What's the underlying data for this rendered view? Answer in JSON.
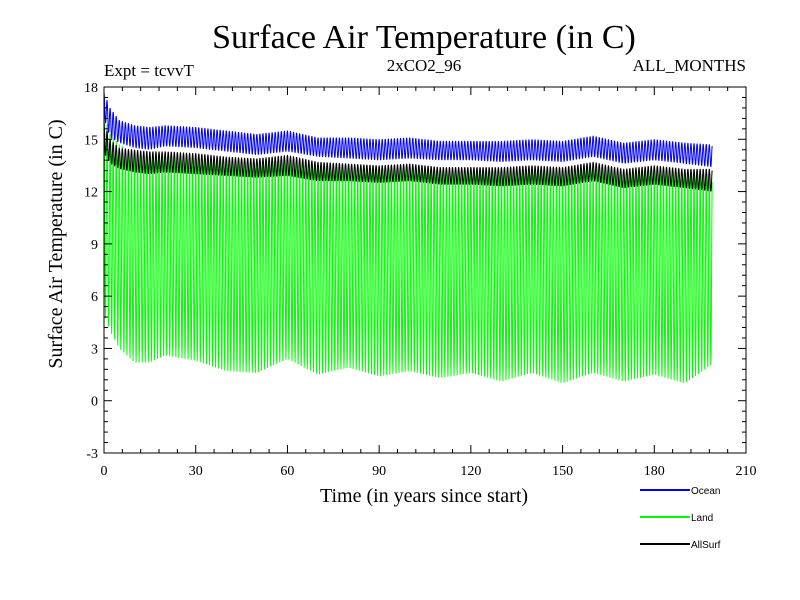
{
  "chart_data": {
    "type": "line",
    "title": "Surface Air Temperature (in C)",
    "subtitle_left": "Expt = tcvvT",
    "subtitle_center": "2xCO2_96",
    "subtitle_right": "ALL_MONTHS",
    "xlabel": "Time (in years since start)",
    "ylabel": "Surface Air Temperature (in C)",
    "xlim": [
      0,
      210
    ],
    "ylim": [
      -3,
      18
    ],
    "xticks": [
      0,
      30,
      60,
      90,
      120,
      150,
      180,
      210
    ],
    "yticks": [
      -3,
      0,
      3,
      6,
      9,
      12,
      15,
      18
    ],
    "grid": false,
    "legend_position": "bottom-right",
    "series": [
      {
        "name": "Land",
        "color": "#00ff00",
        "x": [
          0,
          2,
          5,
          10,
          15,
          20,
          30,
          40,
          50,
          60,
          70,
          80,
          90,
          100,
          110,
          120,
          130,
          140,
          150,
          160,
          170,
          180,
          190,
          199
        ],
        "ymax": [
          16.4,
          15.3,
          14.7,
          14.2,
          14.0,
          14.0,
          13.9,
          13.7,
          13.7,
          13.9,
          13.6,
          13.5,
          13.4,
          13.4,
          13.3,
          13.3,
          13.2,
          13.3,
          13.3,
          13.3,
          13.2,
          13.3,
          13.2,
          13.3
        ],
        "ymin": [
          5.0,
          4.0,
          3.0,
          2.2,
          2.2,
          2.6,
          2.3,
          1.7,
          1.6,
          2.4,
          1.5,
          1.9,
          1.4,
          1.7,
          1.3,
          1.6,
          1.1,
          1.6,
          1.0,
          1.6,
          1.1,
          1.5,
          1.0,
          2.1
        ]
      },
      {
        "name": "Ocean",
        "color": "#0000ff",
        "x": [
          0,
          2,
          5,
          10,
          15,
          20,
          30,
          40,
          50,
          60,
          70,
          80,
          90,
          100,
          110,
          120,
          130,
          140,
          150,
          160,
          170,
          180,
          190,
          199
        ],
        "ymax": [
          17.7,
          16.8,
          16.1,
          15.8,
          15.7,
          15.8,
          15.7,
          15.5,
          15.3,
          15.5,
          15.1,
          15.1,
          15.0,
          15.1,
          14.9,
          14.9,
          14.9,
          15.0,
          14.9,
          15.2,
          14.8,
          15.0,
          14.8,
          14.7
        ],
        "ymin": [
          16.2,
          15.1,
          14.8,
          14.5,
          14.4,
          14.6,
          14.5,
          14.3,
          14.1,
          14.3,
          14.0,
          13.9,
          13.8,
          13.9,
          13.8,
          13.8,
          13.7,
          13.8,
          13.7,
          14.0,
          13.6,
          13.8,
          13.6,
          13.4
        ]
      },
      {
        "name": "AllSurf",
        "color": "#000000",
        "x": [
          0,
          2,
          5,
          10,
          15,
          20,
          30,
          40,
          50,
          60,
          70,
          80,
          90,
          100,
          110,
          120,
          130,
          140,
          150,
          160,
          170,
          180,
          190,
          199
        ],
        "ymax": [
          16.0,
          15.0,
          14.5,
          14.4,
          14.3,
          14.3,
          14.2,
          14.0,
          13.9,
          14.1,
          13.7,
          13.6,
          13.5,
          13.6,
          13.4,
          13.4,
          13.4,
          13.5,
          13.4,
          13.7,
          13.3,
          13.5,
          13.3,
          13.3
        ],
        "ymin": [
          14.2,
          13.6,
          13.3,
          13.1,
          13.0,
          13.1,
          13.0,
          12.9,
          12.8,
          12.9,
          12.6,
          12.6,
          12.5,
          12.6,
          12.4,
          12.4,
          12.3,
          12.4,
          12.3,
          12.6,
          12.2,
          12.4,
          12.2,
          12.0
        ]
      }
    ]
  }
}
